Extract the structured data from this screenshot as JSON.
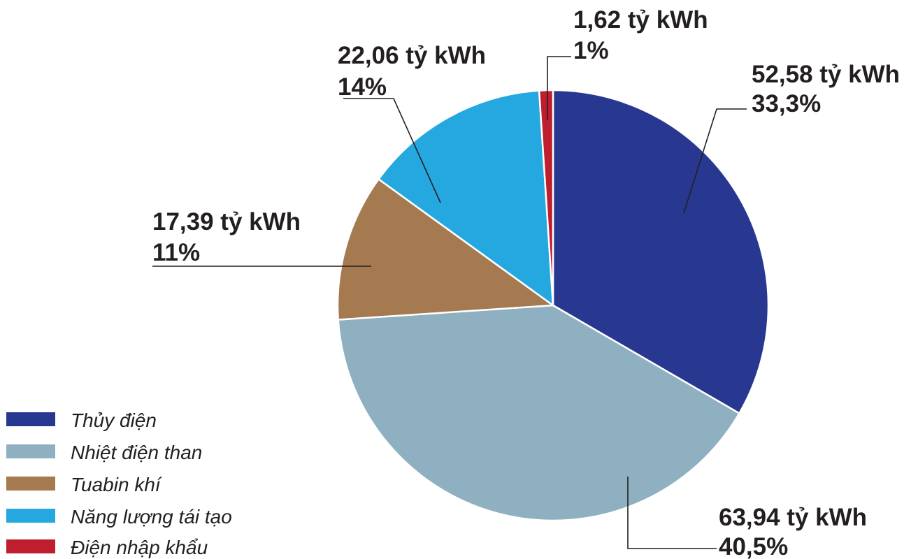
{
  "chart_data": {
    "type": "pie",
    "unit": "tỷ kWh",
    "slices": [
      {
        "name": "Thủy điện",
        "value": 52.58,
        "value_label": "52,58 tỷ kWh",
        "percent_label": "33,3%",
        "color": "#283891"
      },
      {
        "name": "Nhiệt điện than",
        "value": 63.94,
        "value_label": "63,94 tỷ kWh",
        "percent_label": "40,5%",
        "color": "#8fb0c0"
      },
      {
        "name": "Tuabin khí",
        "value": 17.39,
        "value_label": "17,39 tỷ kWh",
        "percent_label": "11%",
        "color": "#a57a50"
      },
      {
        "name": "Năng lượng tái tạo",
        "value": 22.06,
        "value_label": "22,06 tỷ kWh",
        "percent_label": "14%",
        "color": "#25a8df"
      },
      {
        "name": "Điện nhập khẩu",
        "value": 1.62,
        "value_label": "1,62 tỷ kWh",
        "percent_label": "1%",
        "color": "#be1e2d"
      }
    ],
    "legend_position": "bottom-left"
  }
}
